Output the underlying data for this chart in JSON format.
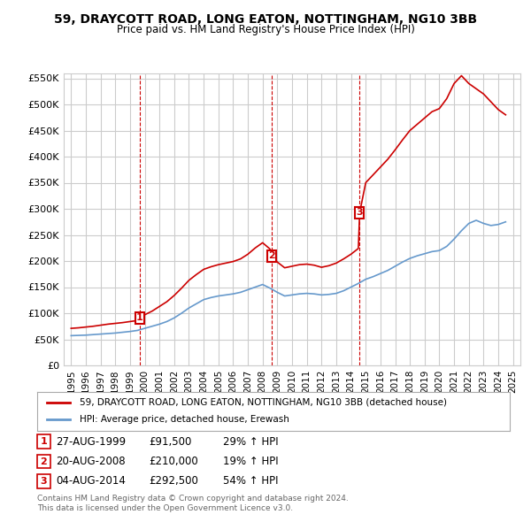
{
  "title": "59, DRAYCOTT ROAD, LONG EATON, NOTTINGHAM, NG10 3BB",
  "subtitle": "Price paid vs. HM Land Registry's House Price Index (HPI)",
  "red_label": "59, DRAYCOTT ROAD, LONG EATON, NOTTINGHAM, NG10 3BB (detached house)",
  "blue_label": "HPI: Average price, detached house, Erewash",
  "footer1": "Contains HM Land Registry data © Crown copyright and database right 2024.",
  "footer2": "This data is licensed under the Open Government Licence v3.0.",
  "transactions": [
    {
      "num": "1",
      "date": "27-AUG-1999",
      "price": "£91,500",
      "change": "29% ↑ HPI"
    },
    {
      "num": "2",
      "date": "20-AUG-2008",
      "price": "£210,000",
      "change": "19% ↑ HPI"
    },
    {
      "num": "3",
      "date": "04-AUG-2014",
      "price": "£292,500",
      "change": "54% ↑ HPI"
    }
  ],
  "sale_dates": [
    1999.65,
    2008.63,
    2014.59
  ],
  "sale_prices": [
    91500,
    210000,
    292500
  ],
  "hpi_x": [
    1995,
    1995.5,
    1996,
    1996.5,
    1997,
    1997.5,
    1998,
    1998.5,
    1999,
    1999.5,
    2000,
    2000.5,
    2001,
    2001.5,
    2002,
    2002.5,
    2003,
    2003.5,
    2004,
    2004.5,
    2005,
    2005.5,
    2006,
    2006.5,
    2007,
    2007.5,
    2008,
    2008.5,
    2009,
    2009.5,
    2010,
    2010.5,
    2011,
    2011.5,
    2012,
    2012.5,
    2013,
    2013.5,
    2014,
    2014.5,
    2015,
    2015.5,
    2016,
    2016.5,
    2017,
    2017.5,
    2018,
    2018.5,
    2019,
    2019.5,
    2020,
    2020.5,
    2021,
    2021.5,
    2022,
    2022.5,
    2023,
    2023.5,
    2024,
    2024.5
  ],
  "hpi_y": [
    57000,
    57500,
    58000,
    59000,
    60000,
    61000,
    62000,
    63500,
    65000,
    67000,
    71000,
    75000,
    79000,
    84000,
    91000,
    100000,
    110000,
    118000,
    126000,
    130000,
    133000,
    135000,
    137000,
    140000,
    145000,
    150000,
    155000,
    148000,
    140000,
    133000,
    135000,
    137000,
    138000,
    137000,
    135000,
    136000,
    138000,
    143000,
    150000,
    157000,
    165000,
    170000,
    176000,
    182000,
    190000,
    198000,
    205000,
    210000,
    214000,
    218000,
    220000,
    228000,
    242000,
    258000,
    272000,
    278000,
    272000,
    268000,
    270000,
    275000
  ],
  "red_x": [
    1995,
    1995.5,
    1996,
    1996.5,
    1997,
    1997.5,
    1998,
    1998.5,
    1999,
    1999.5,
    1999.65,
    2000,
    2000.5,
    2001,
    2001.5,
    2002,
    2002.5,
    2003,
    2003.5,
    2004,
    2004.5,
    2005,
    2005.5,
    2006,
    2006.5,
    2007,
    2007.5,
    2008,
    2008.5,
    2008.63,
    2009,
    2009.5,
    2010,
    2010.5,
    2011,
    2011.5,
    2012,
    2012.5,
    2013,
    2013.5,
    2014,
    2014.5,
    2014.59,
    2015,
    2015.5,
    2016,
    2016.5,
    2017,
    2017.5,
    2018,
    2018.5,
    2019,
    2019.5,
    2020,
    2020.5,
    2021,
    2021.5,
    2022,
    2022.5,
    2023,
    2023.5,
    2024,
    2024.5
  ],
  "red_y": [
    71000,
    72000,
    73500,
    75000,
    77000,
    79000,
    80500,
    82000,
    84000,
    86000,
    91500,
    97000,
    104000,
    113000,
    122000,
    134000,
    148000,
    163000,
    174000,
    184000,
    189000,
    193000,
    196000,
    199000,
    204000,
    213000,
    225000,
    235000,
    223000,
    210000,
    198000,
    187000,
    190000,
    193000,
    194000,
    192000,
    188000,
    191000,
    196000,
    204000,
    213000,
    224000,
    292500,
    350000,
    365000,
    380000,
    395000,
    413000,
    432000,
    450000,
    462000,
    474000,
    486000,
    492000,
    511000,
    540000,
    555000,
    540000,
    530000,
    520000,
    505000,
    490000,
    480000
  ],
  "vline_x": [
    1999.65,
    2008.63,
    2014.59
  ],
  "ylim": [
    0,
    560000
  ],
  "yticks": [
    0,
    50000,
    100000,
    150000,
    200000,
    250000,
    300000,
    350000,
    400000,
    450000,
    500000,
    550000
  ],
  "ytick_labels": [
    "£0",
    "£50K",
    "£100K",
    "£150K",
    "£200K",
    "£250K",
    "£300K",
    "£350K",
    "£400K",
    "£450K",
    "£500K",
    "£550K"
  ],
  "xlim": [
    1994.5,
    2025.5
  ],
  "xticks": [
    1995,
    1996,
    1997,
    1998,
    1999,
    2000,
    2001,
    2002,
    2003,
    2004,
    2005,
    2006,
    2007,
    2008,
    2009,
    2010,
    2011,
    2012,
    2013,
    2014,
    2015,
    2016,
    2017,
    2018,
    2019,
    2020,
    2021,
    2022,
    2023,
    2024,
    2025
  ],
  "red_color": "#cc0000",
  "blue_color": "#6699cc",
  "vline_color": "#cc0000",
  "grid_color": "#cccccc",
  "bg_color": "#ffffff",
  "marker_nums": [
    "1",
    "2",
    "3"
  ]
}
